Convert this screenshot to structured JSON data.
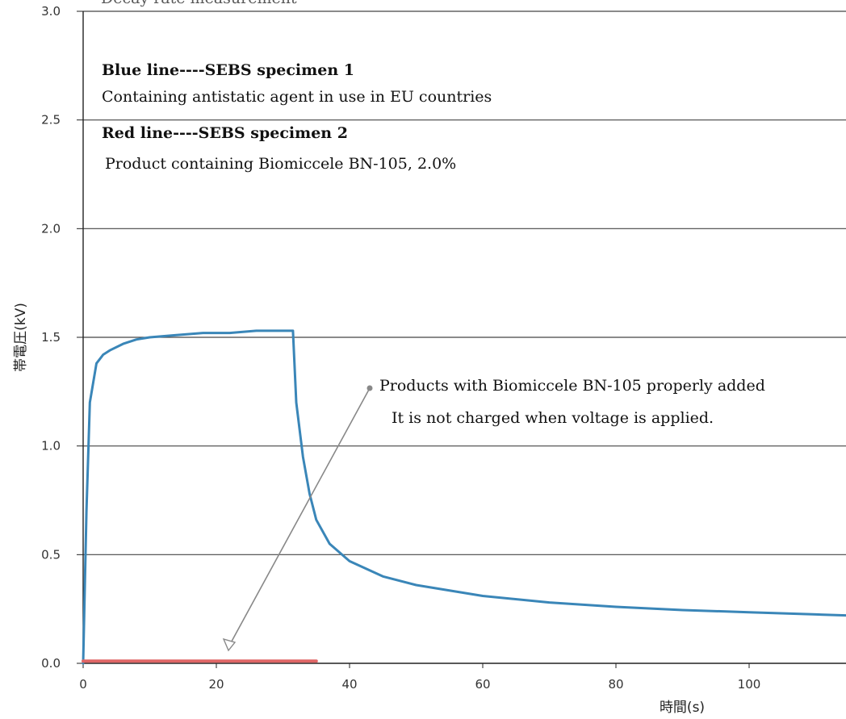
{
  "chart_data": {
    "type": "line",
    "title": "Decay rate measurement",
    "xlabel": "時間(s)",
    "ylabel": "帯電圧(kV)",
    "xlim": [
      0,
      115
    ],
    "ylim": [
      0,
      3.0
    ],
    "x_ticks": [
      "0",
      "20",
      "40",
      "60",
      "80",
      "100"
    ],
    "y_ticks": [
      "0.0",
      "0.5",
      "1.0",
      "1.5",
      "2.0",
      "2.5",
      "3.0"
    ],
    "grid": "horizontal",
    "series": [
      {
        "name": "SEBS specimen 1",
        "color": "#3a86b8",
        "x": [
          0,
          0.5,
          1,
          2,
          3,
          4,
          6,
          8,
          10,
          14,
          18,
          22,
          26,
          30,
          31.5,
          32,
          33,
          34,
          35,
          37,
          40,
          45,
          50,
          60,
          70,
          80,
          90,
          100,
          110,
          115
        ],
        "y": [
          0,
          0.7,
          1.2,
          1.38,
          1.42,
          1.44,
          1.47,
          1.49,
          1.5,
          1.51,
          1.52,
          1.52,
          1.53,
          1.53,
          1.53,
          1.2,
          0.95,
          0.78,
          0.66,
          0.55,
          0.47,
          0.4,
          0.36,
          0.31,
          0.28,
          0.26,
          0.245,
          0.235,
          0.225,
          0.22
        ]
      },
      {
        "name": "SEBS specimen 2",
        "color": "#e06666",
        "x": [
          0,
          35
        ],
        "y": [
          0.01,
          0.01
        ]
      }
    ]
  },
  "annotations": {
    "blue_line_label": "Blue line----SEBS specimen 1",
    "blue_line_desc": "Containing antistatic agent in use in EU countries",
    "red_line_label": "Red line----SEBS specimen 2",
    "red_line_desc": "Product containing Biomiccele BN-105, 2.0%",
    "arrow_note_1": "Products with Biomiccele BN-105 properly added",
    "arrow_note_2": "It is not charged when voltage is applied."
  },
  "colors": {
    "axis": "#222222",
    "grid": "#444444",
    "arrow": "#888888"
  }
}
